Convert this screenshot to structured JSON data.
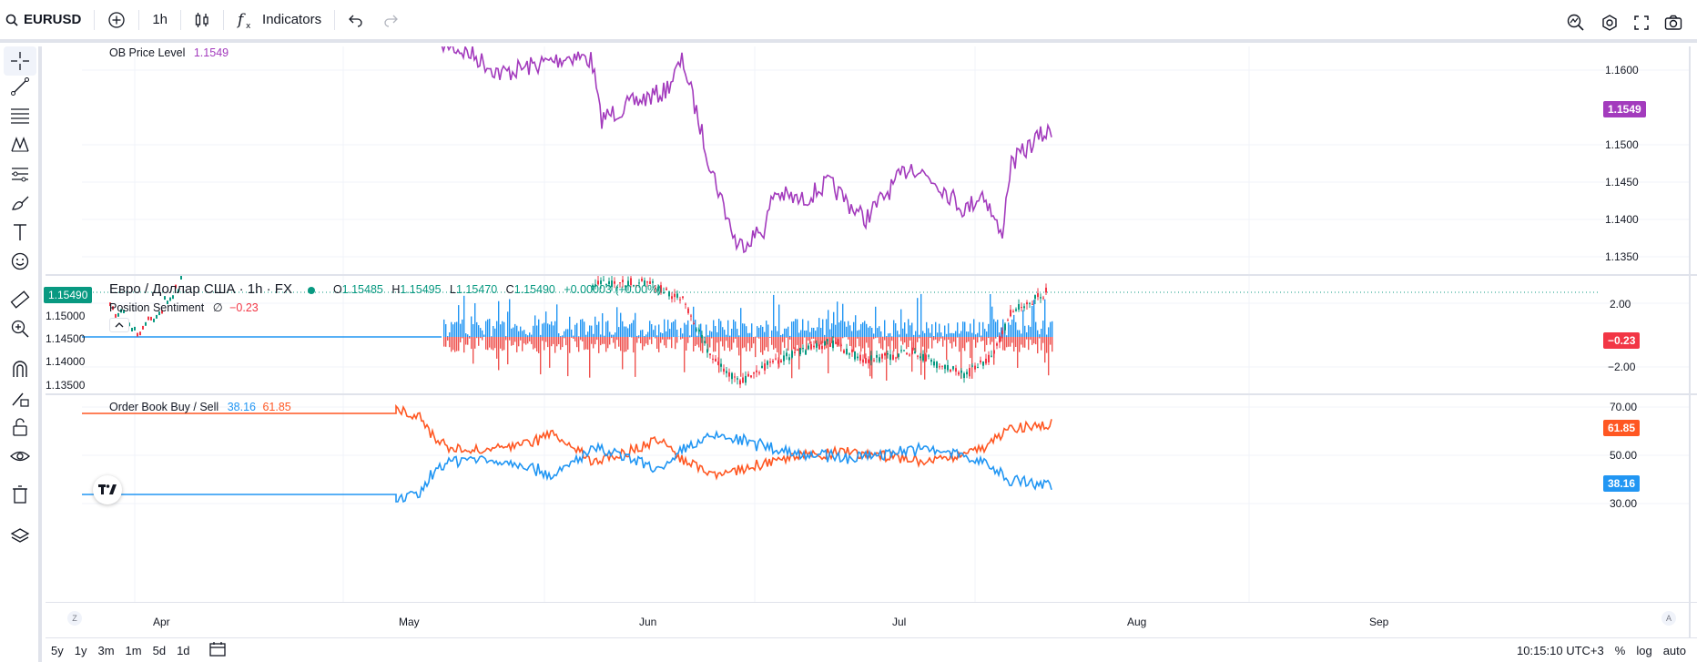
{
  "toolbar": {
    "symbol": "EURUSD",
    "interval": "1h",
    "indicators_label": "Indicators"
  },
  "legend": {
    "ob_price_title": "OB Price Level",
    "ob_price_value": "1.1549",
    "main_title": "Евро / Доллар США · 1h · FX",
    "o_label": "O",
    "o_value": "1.15485",
    "h_label": "H",
    "h_value": "1.15495",
    "l_label": "L",
    "l_value": "1.15470",
    "c_label": "C",
    "c_value": "1.15490",
    "change": "+0.00003 (+0.00%)",
    "sentiment_title": "Position Sentiment",
    "sentiment_symbol": "∅",
    "sentiment_value": "−0.23",
    "orderbook_title": "Order Book Buy / Sell",
    "orderbook_buy": "38.16",
    "orderbook_sell": "61.85"
  },
  "price_axis": {
    "pane1": [
      "1.1600",
      "1.1550",
      "1.1500",
      "1.1450",
      "1.1400",
      "1.1350"
    ],
    "pane1_tag": "1.1549",
    "pane2": [
      "2.00",
      "−2.00"
    ],
    "pane2_tag": "−0.23",
    "pane2_left": [
      "1.15000",
      "1.14500",
      "1.14000",
      "1.13500"
    ],
    "pane2_left_tag": "1.15490",
    "pane3": [
      "70.00",
      "50.00",
      "30.00"
    ],
    "pane3_tag_sell": "61.85",
    "pane3_tag_buy": "38.16"
  },
  "time_axis": [
    "Apr",
    "May",
    "Jun",
    "Jul",
    "Aug",
    "Sep"
  ],
  "bottom": {
    "ranges": [
      "5y",
      "1y",
      "3m",
      "1m",
      "5d",
      "1d"
    ],
    "clock": "10:15:10 UTC+3",
    "percent": "%",
    "log": "log",
    "auto": "auto"
  },
  "colors": {
    "ob_line": "#a33bbd",
    "pos_up": "#2196f3",
    "pos_down": "#ef5350",
    "buy": "#2196f3",
    "sell": "#ff5722",
    "candle_up": "#089981",
    "candle_down": "#f23645"
  }
}
